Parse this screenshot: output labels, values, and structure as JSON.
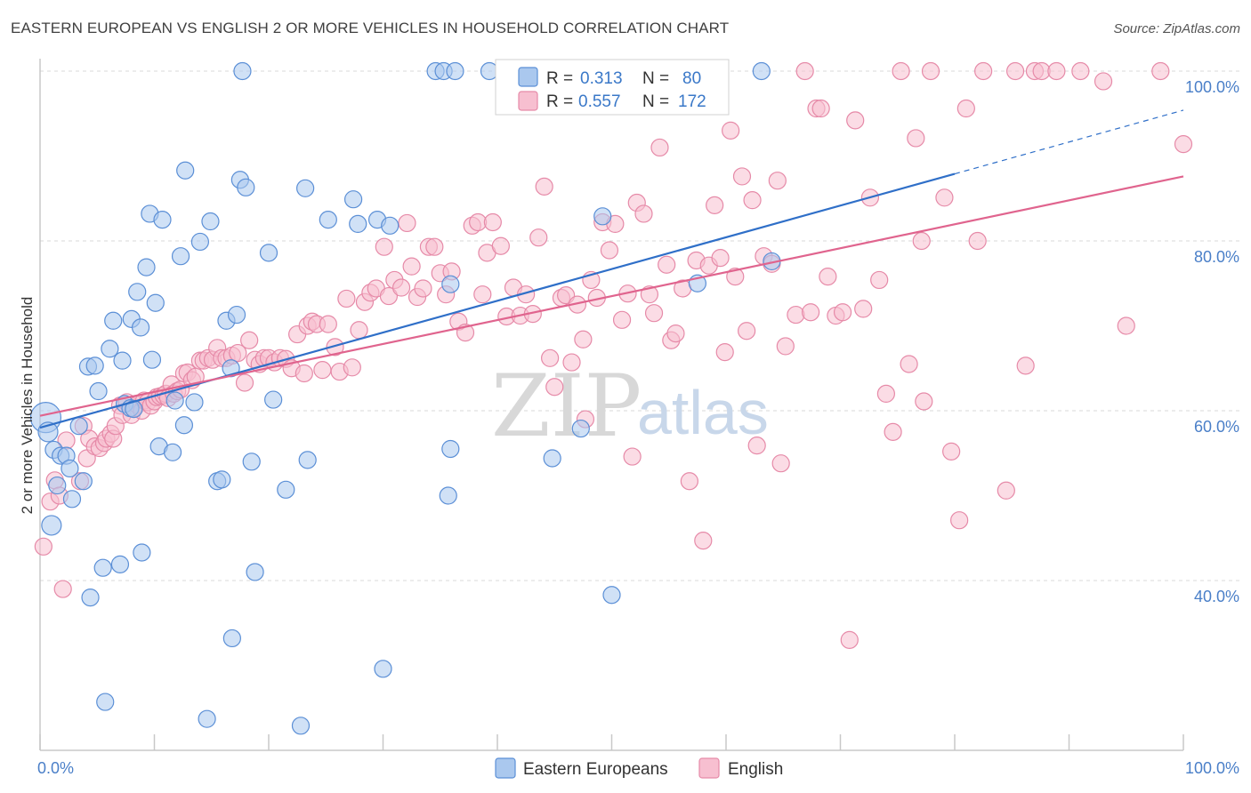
{
  "header": {
    "title": "EASTERN EUROPEAN VS ENGLISH 2 OR MORE VEHICLES IN HOUSEHOLD CORRELATION CHART",
    "source": "Source: ZipAtlas.com"
  },
  "watermark": {
    "zip": "ZIP",
    "atlas": "atlas"
  },
  "colors": {
    "blue_fill": "#aac8ee",
    "blue_stroke": "#5b8fd6",
    "blue_line": "#2f6fc8",
    "pink_fill": "#f7bfd0",
    "pink_stroke": "#e68aa8",
    "pink_line": "#e0648e",
    "grid": "#d9d9d9",
    "tick_label": "#4a7fc8"
  },
  "legend": {
    "rows": [
      {
        "r_label": "R =",
        "r_value": "0.313",
        "n_label": "N =",
        "n_value": "80"
      },
      {
        "r_label": "R =",
        "r_value": "0.557",
        "n_label": "N =",
        "n_value": "172"
      }
    ]
  },
  "chart_data": {
    "type": "scatter",
    "title": "EASTERN EUROPEAN VS ENGLISH 2 OR MORE VEHICLES IN HOUSEHOLD CORRELATION CHART",
    "xlabel": "",
    "ylabel": "2 or more Vehicles in Household",
    "xlim": [
      0,
      100
    ],
    "ylim": [
      20,
      100
    ],
    "x_tick_labels": [
      "0.0%",
      "100.0%"
    ],
    "y_tick_labels": [
      "100.0%",
      "80.0%",
      "60.0%",
      "40.0%"
    ],
    "y_ticks": [
      100,
      80,
      60,
      40
    ],
    "grid": true,
    "legend_position": "top-center",
    "series": [
      {
        "name": "Eastern Europeans",
        "r": 0.313,
        "n": 80,
        "trend": {
          "x0": 0,
          "y0": 58.0,
          "x1": 80,
          "y1": 87.9,
          "dashed_to_x": 100,
          "dashed_to_y": 95.4
        },
        "points": [
          [
            0.5,
            59.2,
            "L"
          ],
          [
            0.7,
            57.5,
            "M"
          ],
          [
            1.0,
            46.5,
            "M"
          ],
          [
            1.2,
            55.4,
            "S"
          ],
          [
            1.5,
            51.2,
            "S"
          ],
          [
            1.8,
            54.7,
            "S"
          ],
          [
            2.3,
            54.7,
            "S"
          ],
          [
            2.6,
            53.2,
            "S"
          ],
          [
            2.8,
            49.6,
            "S"
          ],
          [
            3.4,
            58.2,
            "S"
          ],
          [
            3.8,
            51.7,
            "S"
          ],
          [
            4.2,
            65.2,
            "S"
          ],
          [
            4.4,
            38.0,
            "S"
          ],
          [
            4.8,
            65.3,
            "S"
          ],
          [
            5.1,
            62.3,
            "S"
          ],
          [
            5.5,
            41.5,
            "S"
          ],
          [
            5.7,
            25.7,
            "S"
          ],
          [
            6.1,
            67.3,
            "S"
          ],
          [
            6.4,
            70.6,
            "S"
          ],
          [
            7.0,
            41.9,
            "S"
          ],
          [
            7.2,
            65.9,
            "S"
          ],
          [
            7.4,
            60.8,
            "S"
          ],
          [
            7.9,
            60.3,
            "S"
          ],
          [
            8.0,
            70.8,
            "S"
          ],
          [
            8.2,
            60.2,
            "S"
          ],
          [
            8.5,
            74.0,
            "S"
          ],
          [
            8.8,
            69.8,
            "S"
          ],
          [
            8.9,
            43.3,
            "S"
          ],
          [
            9.3,
            76.9,
            "S"
          ],
          [
            9.6,
            83.2,
            "S"
          ],
          [
            9.8,
            66.0,
            "S"
          ],
          [
            10.1,
            72.7,
            "S"
          ],
          [
            10.4,
            55.8,
            "S"
          ],
          [
            10.7,
            82.5,
            "S"
          ],
          [
            11.6,
            55.1,
            "S"
          ],
          [
            11.8,
            61.2,
            "S"
          ],
          [
            12.3,
            78.2,
            "S"
          ],
          [
            12.6,
            58.3,
            "S"
          ],
          [
            12.7,
            88.3,
            "S"
          ],
          [
            13.5,
            61.0,
            "S"
          ],
          [
            14.0,
            79.9,
            "S"
          ],
          [
            14.6,
            23.7,
            "S"
          ],
          [
            14.9,
            82.3,
            "S"
          ],
          [
            15.5,
            51.7,
            "S"
          ],
          [
            15.9,
            51.9,
            "S"
          ],
          [
            16.3,
            70.6,
            "S"
          ],
          [
            16.7,
            65.0,
            "S"
          ],
          [
            16.8,
            33.2,
            "S"
          ],
          [
            17.2,
            71.3,
            "S"
          ],
          [
            17.5,
            87.2,
            "S"
          ],
          [
            17.7,
            100.0,
            "S"
          ],
          [
            18.0,
            86.3,
            "S"
          ],
          [
            18.5,
            54.0,
            "S"
          ],
          [
            18.8,
            41.0,
            "S"
          ],
          [
            20.0,
            78.6,
            "S"
          ],
          [
            20.4,
            61.3,
            "S"
          ],
          [
            21.5,
            50.7,
            "S"
          ],
          [
            22.8,
            22.9,
            "S"
          ],
          [
            23.2,
            86.2,
            "S"
          ],
          [
            23.4,
            54.2,
            "S"
          ],
          [
            25.2,
            82.5,
            "S"
          ],
          [
            27.4,
            84.9,
            "S"
          ],
          [
            27.8,
            82.0,
            "S"
          ],
          [
            29.5,
            82.5,
            "S"
          ],
          [
            30.0,
            29.6,
            "S"
          ],
          [
            30.6,
            81.8,
            "S"
          ],
          [
            34.6,
            100.0,
            "S"
          ],
          [
            35.3,
            100.0,
            "S"
          ],
          [
            35.7,
            50.0,
            "S"
          ],
          [
            35.9,
            74.9,
            "S"
          ],
          [
            35.9,
            55.5,
            "S"
          ],
          [
            36.3,
            100.0,
            "S"
          ],
          [
            39.3,
            100.0,
            "S"
          ],
          [
            44.8,
            54.4,
            "S"
          ],
          [
            47.3,
            57.9,
            "S"
          ],
          [
            49.2,
            82.9,
            "S"
          ],
          [
            50.0,
            38.3,
            "S"
          ],
          [
            57.5,
            75.0,
            "S"
          ],
          [
            63.1,
            100.0,
            "S"
          ],
          [
            64.0,
            77.6,
            "S"
          ]
        ]
      },
      {
        "name": "English",
        "r": 0.557,
        "n": 172,
        "trend": {
          "x0": 0,
          "y0": 59.4,
          "x1": 100,
          "y1": 87.6
        },
        "points": [
          [
            0.3,
            44.0
          ],
          [
            0.9,
            49.3
          ],
          [
            1.3,
            51.8
          ],
          [
            1.7,
            50.0
          ],
          [
            2.0,
            39.0
          ],
          [
            2.3,
            56.5
          ],
          [
            3.5,
            51.7
          ],
          [
            3.8,
            58.2
          ],
          [
            4.1,
            54.4
          ],
          [
            4.3,
            56.7
          ],
          [
            4.8,
            55.8
          ],
          [
            5.2,
            55.6
          ],
          [
            5.6,
            56.2
          ],
          [
            5.8,
            56.7
          ],
          [
            6.2,
            57.3
          ],
          [
            6.4,
            56.7
          ],
          [
            6.6,
            58.2
          ],
          [
            7.0,
            60.6
          ],
          [
            7.2,
            59.5
          ],
          [
            7.6,
            61.0
          ],
          [
            8.0,
            59.5
          ],
          [
            8.2,
            60.3
          ],
          [
            8.5,
            60.7
          ],
          [
            8.9,
            60.0
          ],
          [
            9.1,
            61.2
          ],
          [
            9.4,
            61.0
          ],
          [
            9.7,
            60.6
          ],
          [
            10.0,
            61.1
          ],
          [
            10.2,
            61.6
          ],
          [
            10.5,
            61.7
          ],
          [
            10.8,
            61.8
          ],
          [
            11.0,
            62.0
          ],
          [
            11.2,
            61.5
          ],
          [
            11.5,
            63.1
          ],
          [
            11.7,
            62.0
          ],
          [
            12.0,
            62.3
          ],
          [
            12.3,
            62.5
          ],
          [
            12.6,
            64.4
          ],
          [
            12.9,
            64.5
          ],
          [
            13.3,
            63.6
          ],
          [
            13.6,
            64.0
          ],
          [
            14.0,
            65.9
          ],
          [
            14.3,
            65.9
          ],
          [
            14.7,
            66.2
          ],
          [
            15.1,
            66.0
          ],
          [
            15.5,
            67.4
          ],
          [
            15.9,
            66.2
          ],
          [
            16.3,
            66.2
          ],
          [
            16.8,
            66.5
          ],
          [
            17.3,
            66.8
          ],
          [
            17.9,
            63.3
          ],
          [
            18.3,
            68.3
          ],
          [
            18.8,
            66.0
          ],
          [
            19.2,
            65.5
          ],
          [
            19.6,
            66.2
          ],
          [
            20.0,
            66.2
          ],
          [
            20.5,
            65.7
          ],
          [
            21.0,
            66.2
          ],
          [
            21.5,
            66.1
          ],
          [
            22.0,
            65.0
          ],
          [
            22.5,
            69.0
          ],
          [
            23.1,
            64.4
          ],
          [
            23.4,
            70.0
          ],
          [
            23.8,
            70.5
          ],
          [
            24.2,
            70.2
          ],
          [
            24.7,
            64.8
          ],
          [
            25.2,
            70.2
          ],
          [
            25.8,
            67.5
          ],
          [
            26.2,
            64.6
          ],
          [
            26.8,
            73.2
          ],
          [
            27.3,
            65.1
          ],
          [
            27.9,
            69.5
          ],
          [
            28.4,
            72.8
          ],
          [
            28.9,
            73.9
          ],
          [
            29.4,
            74.4
          ],
          [
            30.1,
            79.3
          ],
          [
            30.5,
            73.5
          ],
          [
            31.0,
            75.4
          ],
          [
            31.6,
            74.5
          ],
          [
            32.1,
            82.1
          ],
          [
            32.5,
            77.0
          ],
          [
            33.0,
            73.4
          ],
          [
            33.5,
            74.4
          ],
          [
            34.0,
            79.3
          ],
          [
            34.5,
            79.3
          ],
          [
            35.0,
            76.2
          ],
          [
            35.5,
            73.7
          ],
          [
            36.0,
            76.4
          ],
          [
            36.6,
            70.5
          ],
          [
            37.2,
            69.2
          ],
          [
            37.8,
            81.8
          ],
          [
            38.3,
            82.2
          ],
          [
            38.7,
            73.7
          ],
          [
            39.1,
            78.6
          ],
          [
            39.6,
            82.2
          ],
          [
            40.3,
            79.4
          ],
          [
            40.8,
            71.1
          ],
          [
            41.4,
            74.5
          ],
          [
            42.0,
            71.2
          ],
          [
            42.5,
            73.7
          ],
          [
            43.1,
            71.4
          ],
          [
            43.6,
            80.4
          ],
          [
            44.1,
            86.4
          ],
          [
            44.6,
            66.2
          ],
          [
            45.0,
            62.8
          ],
          [
            45.6,
            73.3
          ],
          [
            46.0,
            73.6
          ],
          [
            46.5,
            65.7
          ],
          [
            47.0,
            72.5
          ],
          [
            47.5,
            68.4
          ],
          [
            47.7,
            59.0
          ],
          [
            48.2,
            75.4
          ],
          [
            48.7,
            73.3
          ],
          [
            49.2,
            82.2
          ],
          [
            49.8,
            78.9
          ],
          [
            50.3,
            82.0
          ],
          [
            50.9,
            70.7
          ],
          [
            51.4,
            73.8
          ],
          [
            51.8,
            54.6
          ],
          [
            52.2,
            84.5
          ],
          [
            52.8,
            83.2
          ],
          [
            53.3,
            73.7
          ],
          [
            53.7,
            71.5
          ],
          [
            54.2,
            91.0
          ],
          [
            54.8,
            77.2
          ],
          [
            55.2,
            68.3
          ],
          [
            55.6,
            69.1
          ],
          [
            56.2,
            74.4
          ],
          [
            56.8,
            51.7
          ],
          [
            57.4,
            77.7
          ],
          [
            58.0,
            44.7
          ],
          [
            58.5,
            77.1
          ],
          [
            59.0,
            84.2
          ],
          [
            59.5,
            78.0
          ],
          [
            59.9,
            66.9
          ],
          [
            60.4,
            93.0
          ],
          [
            60.8,
            75.8
          ],
          [
            61.4,
            87.6
          ],
          [
            61.8,
            69.4
          ],
          [
            62.3,
            84.8
          ],
          [
            62.7,
            55.9
          ],
          [
            63.3,
            78.2
          ],
          [
            64.0,
            77.3
          ],
          [
            64.5,
            87.1
          ],
          [
            64.8,
            53.8
          ],
          [
            65.2,
            67.6
          ],
          [
            66.1,
            71.3
          ],
          [
            66.9,
            100.0
          ],
          [
            67.4,
            71.6
          ],
          [
            67.9,
            95.6
          ],
          [
            68.3,
            95.6
          ],
          [
            68.9,
            75.8
          ],
          [
            69.6,
            71.2
          ],
          [
            70.2,
            71.6
          ],
          [
            70.8,
            33.0
          ],
          [
            71.3,
            94.2
          ],
          [
            72.0,
            72.0
          ],
          [
            72.6,
            85.1
          ],
          [
            73.4,
            75.4
          ],
          [
            74.0,
            62.0
          ],
          [
            74.6,
            57.5
          ],
          [
            75.3,
            100.0
          ],
          [
            76.0,
            65.5
          ],
          [
            76.6,
            92.1
          ],
          [
            77.1,
            80.0
          ],
          [
            77.3,
            61.1
          ],
          [
            77.9,
            100.0
          ],
          [
            79.1,
            85.1
          ],
          [
            79.7,
            55.2
          ],
          [
            80.4,
            47.1
          ],
          [
            81.0,
            95.6
          ],
          [
            82.0,
            80.0
          ],
          [
            82.5,
            100.0
          ],
          [
            84.5,
            50.6
          ],
          [
            85.3,
            100.0
          ],
          [
            86.2,
            65.3
          ],
          [
            87.0,
            100.0
          ],
          [
            87.6,
            100.0
          ],
          [
            88.9,
            100.0
          ],
          [
            91.0,
            100.0
          ],
          [
            93.0,
            98.8
          ],
          [
            95.0,
            70.0
          ],
          [
            98.0,
            100.0
          ],
          [
            100.0,
            91.4
          ]
        ]
      }
    ]
  },
  "bottom_legend": {
    "items": [
      {
        "label": "Eastern Europeans"
      },
      {
        "label": "English"
      }
    ]
  }
}
